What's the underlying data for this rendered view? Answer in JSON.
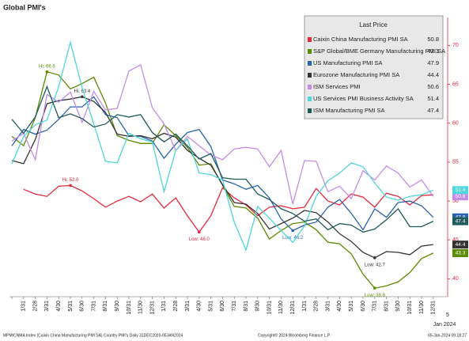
{
  "chart_data": {
    "type": "line",
    "title": "Global PMI's",
    "categories": [
      null,
      "1/31",
      "2/28",
      "3/31",
      "4/30",
      "5/31",
      "6/30",
      "7/31",
      "8/31",
      "9/30",
      "10/31",
      "11/30",
      "12/31",
      "1/31",
      "2/28",
      "3/31",
      "4/30",
      "5/31",
      "6/30",
      "7/31",
      "8/31",
      "9/30",
      "10/31",
      "11/30",
      "12/31",
      "1/31",
      "2/28",
      "3/31",
      "4/30",
      "5/31",
      "6/30",
      "7/31",
      "8/31",
      "9/30",
      "10/31",
      "11/30",
      "12/31"
    ],
    "x_end_label": "5",
    "x_end_sublabel": "Jan 2024",
    "ylim": [
      37.7,
      73.6
    ],
    "yticks": [
      40,
      45,
      50,
      55,
      60,
      65,
      70
    ],
    "y_axis_side": "right",
    "legend_title": "Last Price",
    "legend_position": "upper right",
    "series": [
      {
        "name": "Caixin China Manufacturing PMI SA",
        "color": "#e8283c",
        "values": [
          null,
          51.5,
          50.9,
          50.6,
          51.9,
          52.0,
          51.3,
          50.3,
          49.2,
          50.0,
          50.6,
          49.9,
          50.9,
          49.1,
          50.4,
          48.1,
          46.0,
          48.1,
          51.7,
          50.4,
          49.5,
          48.1,
          49.2,
          49.4,
          49.0,
          49.2,
          51.6,
          50.0,
          49.5,
          50.9,
          50.5,
          49.2,
          51.0,
          50.6,
          49.5,
          50.7,
          50.8
        ],
        "annotations": [
          {
            "index": 5,
            "label": "Hi: 52.0"
          },
          {
            "index": 16,
            "label": "Low: 46.0"
          }
        ]
      },
      {
        "name": "S&P Global/BME Germany Manufacturing PMI SA",
        "color": "#5a8a00",
        "values": [
          58.3,
          57.1,
          60.7,
          66.6,
          66.2,
          64.4,
          65.1,
          65.9,
          62.6,
          58.4,
          57.8,
          57.4,
          57.4,
          59.8,
          58.4,
          56.9,
          54.6,
          54.8,
          52.0,
          49.3,
          49.1,
          47.8,
          45.1,
          46.2,
          47.1,
          47.3,
          46.3,
          44.7,
          44.5,
          43.2,
          40.6,
          38.8,
          39.1,
          39.6,
          40.8,
          42.6,
          43.3
        ],
        "annotations": [
          {
            "index": 3,
            "label": "Hi: 66.6"
          },
          {
            "index": 31,
            "label": "Low: 38.8"
          }
        ]
      },
      {
        "name": "US Manufacturing PMI SA",
        "color": "#2a62b0",
        "values": [
          57.1,
          59.2,
          58.6,
          59.1,
          60.5,
          62.1,
          62.1,
          63.4,
          61.1,
          60.7,
          58.4,
          58.3,
          57.7,
          55.5,
          57.3,
          58.8,
          59.2,
          57.0,
          52.7,
          52.2,
          51.5,
          52.0,
          50.4,
          47.7,
          46.2,
          46.9,
          47.3,
          49.2,
          50.2,
          48.4,
          46.3,
          49.0,
          47.9,
          49.8,
          50.0,
          49.4,
          47.9
        ],
        "annotations": [
          {
            "index": 24,
            "label": "Low: 46.2"
          }
        ]
      },
      {
        "name": "Eurozone Manufacturing PMI SA",
        "color": "#333333",
        "values": [
          55.2,
          54.8,
          57.9,
          62.5,
          62.9,
          63.1,
          63.4,
          62.8,
          61.4,
          58.6,
          58.3,
          58.4,
          58.0,
          58.7,
          58.2,
          56.5,
          55.5,
          54.6,
          52.1,
          49.8,
          49.6,
          48.4,
          46.4,
          47.1,
          47.8,
          48.8,
          48.5,
          47.3,
          45.8,
          44.8,
          43.4,
          42.7,
          43.5,
          43.4,
          43.1,
          44.2,
          44.4
        ],
        "annotations": [
          {
            "index": 6,
            "label": "Hi: 63.4"
          },
          {
            "index": 31,
            "label": "Low: 42.7"
          }
        ]
      },
      {
        "name": "ISM Services PMI",
        "color": "#c58be8",
        "values": [
          57.7,
          58.7,
          55.3,
          63.7,
          62.7,
          64.0,
          60.1,
          64.1,
          61.7,
          61.9,
          66.7,
          67.5,
          62.0,
          59.9,
          56.5,
          58.3,
          57.1,
          55.9,
          55.3,
          56.7,
          56.9,
          56.7,
          54.4,
          56.5,
          49.6,
          55.2,
          55.1,
          51.2,
          51.9,
          50.3,
          53.9,
          52.7,
          54.5,
          53.6,
          51.8,
          52.7,
          50.6
        ]
      },
      {
        "name": "US Services PMI Business Activity SA",
        "color": "#4fd5dc",
        "values": [
          54.8,
          58.3,
          59.8,
          60.4,
          64.7,
          70.4,
          64.6,
          59.9,
          55.1,
          54.9,
          58.7,
          58.0,
          57.6,
          51.2,
          56.5,
          58.0,
          53.6,
          53.4,
          52.7,
          47.3,
          43.7,
          49.3,
          47.8,
          46.2,
          44.7,
          46.8,
          50.6,
          52.6,
          53.6,
          54.9,
          54.4,
          52.3,
          50.5,
          50.1,
          50.6,
          50.8,
          51.4
        ]
      },
      {
        "name": "ISM Manufacturing PMI SA",
        "color": "#1f5a5a",
        "values": [
          60.5,
          58.7,
          60.8,
          64.7,
          60.7,
          61.2,
          60.6,
          59.5,
          59.9,
          61.1,
          60.8,
          61.1,
          58.8,
          57.6,
          58.6,
          57.1,
          55.4,
          56.1,
          53.0,
          52.8,
          52.8,
          50.9,
          50.2,
          49.0,
          48.4,
          47.4,
          47.7,
          46.3,
          47.1,
          46.9,
          46.0,
          46.4,
          47.6,
          49.0,
          46.7,
          46.7,
          47.4
        ]
      }
    ],
    "footer_left": "MPMICNMA Index (Caixin China Manufacturing PMI SA) Country PMI's  Daily 31DEC2020-05JAN2024",
    "footer_center": "Copyright© 2024 Bloomberg Finance L.P.",
    "footer_right": "05-Jan-2024 09:18:27"
  }
}
